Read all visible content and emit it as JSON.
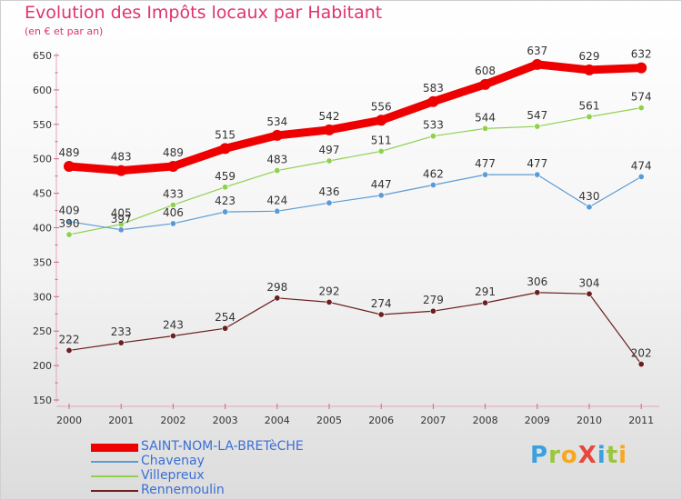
{
  "title": "Evolution des Impôts locaux par Habitant",
  "subtitle": "(en € et par an)",
  "logo": {
    "text": "ProXiti",
    "letters": [
      {
        "ch": "P",
        "color": "#3aa0de"
      },
      {
        "ch": "r",
        "color": "#9bc53d"
      },
      {
        "ch": "o",
        "color": "#f6a821"
      },
      {
        "ch": "X",
        "color": "#e8473f"
      },
      {
        "ch": "i",
        "color": "#3aa0de"
      },
      {
        "ch": "t",
        "color": "#9bc53d"
      },
      {
        "ch": "i",
        "color": "#f6a821"
      }
    ]
  },
  "chart_data": {
    "type": "line",
    "x": [
      "2000",
      "2001",
      "2002",
      "2003",
      "2004",
      "2005",
      "2006",
      "2007",
      "2008",
      "2009",
      "2010",
      "2011"
    ],
    "ylim": [
      150,
      650
    ],
    "yticks": [
      150,
      200,
      250,
      300,
      350,
      400,
      450,
      500,
      550,
      600,
      650
    ],
    "grid": false,
    "legend_position": "bottom-left",
    "series": [
      {
        "name": "SAINT-NOM-LA-BRETèCHE",
        "color": "#ee0000",
        "values": [
          489,
          483,
          489,
          515,
          534,
          542,
          556,
          583,
          608,
          637,
          629,
          632
        ],
        "labels": [
          "489",
          "483",
          "489",
          "515",
          "534",
          "542",
          "556",
          "583",
          "608",
          "637",
          "629",
          "632"
        ]
      },
      {
        "name": "Chavenay",
        "color": "#5b9bd5",
        "values": [
          409,
          397,
          406,
          423,
          424,
          436,
          447,
          462,
          477,
          477,
          430,
          474
        ],
        "labels": [
          "409",
          "397",
          "406",
          "423",
          "424",
          "436",
          "447",
          "462",
          "477",
          "477",
          "430",
          "474"
        ]
      },
      {
        "name": "Villepreux",
        "color": "#8fd14f",
        "values": [
          390,
          405,
          433,
          459,
          483,
          497,
          511,
          533,
          544,
          547,
          561,
          574
        ],
        "labels": [
          "390",
          "405",
          "433",
          "459",
          "483",
          "497",
          "511",
          "533",
          "544",
          "547",
          "561",
          "574"
        ]
      },
      {
        "name": "Rennemoulin",
        "color": "#6b1f1f",
        "values": [
          222,
          233,
          243,
          254,
          298,
          292,
          274,
          279,
          291,
          306,
          304,
          202
        ],
        "labels": [
          "222",
          "233",
          "243",
          "254",
          "298",
          "292",
          "274",
          "279",
          "291",
          "306",
          "304",
          "202"
        ]
      }
    ]
  }
}
